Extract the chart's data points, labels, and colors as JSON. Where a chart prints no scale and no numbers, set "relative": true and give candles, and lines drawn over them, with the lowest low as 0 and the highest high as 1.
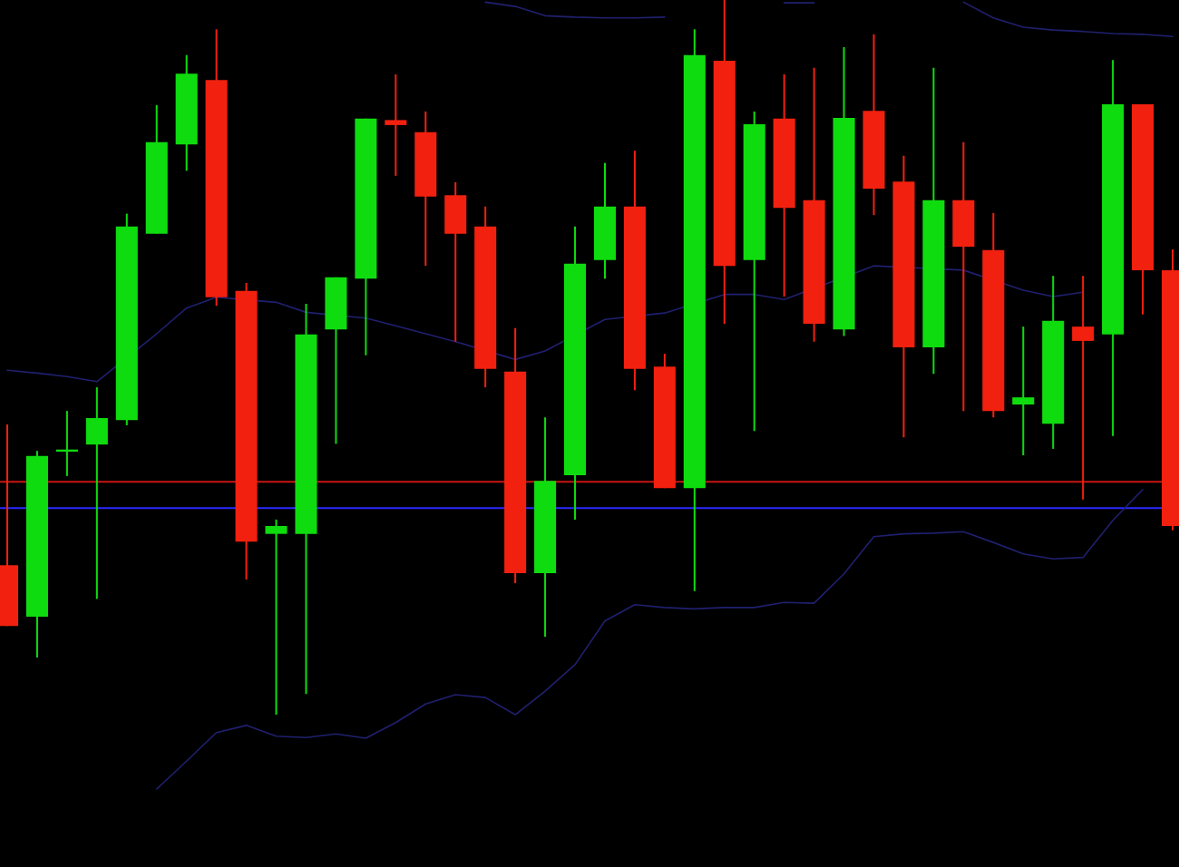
{
  "chart_data": {
    "type": "candlestick",
    "relative": true,
    "categories": [
      null,
      null,
      null,
      null,
      null,
      null,
      null,
      null,
      null,
      null,
      null,
      null,
      null,
      null,
      null,
      null,
      null,
      null,
      null,
      null,
      null,
      null,
      null,
      null,
      null,
      null,
      null,
      null,
      null,
      null,
      null,
      null,
      null,
      null,
      null,
      null,
      null,
      null,
      null,
      null
    ],
    "ohlc": [
      [
        0.209,
        0.406,
        0.124,
        0.124
      ],
      [
        0.137,
        0.369,
        0.08,
        0.362
      ],
      [
        0.368,
        0.425,
        0.334,
        0.371
      ],
      [
        0.378,
        0.458,
        0.162,
        0.415
      ],
      [
        0.412,
        0.701,
        0.405,
        0.683
      ],
      [
        0.673,
        0.853,
        0.673,
        0.801
      ],
      [
        0.798,
        0.923,
        0.761,
        0.897
      ],
      [
        0.888,
        0.959,
        0.572,
        0.584
      ],
      [
        0.593,
        0.604,
        0.189,
        0.242
      ],
      [
        0.253,
        0.273,
        0,
        0.264
      ],
      [
        0.253,
        0.575,
        0.029,
        0.532
      ],
      [
        0.539,
        0.612,
        0.379,
        0.612
      ],
      [
        0.61,
        0.834,
        0.503,
        0.834
      ],
      [
        0.832,
        0.896,
        0.754,
        0.825
      ],
      [
        0.815,
        0.844,
        0.628,
        0.725
      ],
      [
        0.727,
        0.745,
        0.522,
        0.673
      ],
      [
        0.683,
        0.711,
        0.458,
        0.484
      ],
      [
        0.48,
        0.541,
        0.184,
        0.198
      ],
      [
        0.198,
        0.416,
        0.109,
        0.327
      ],
      [
        0.335,
        0.683,
        0.273,
        0.631
      ],
      [
        0.636,
        0.772,
        0.61,
        0.711
      ],
      [
        0.711,
        0.789,
        0.454,
        0.484
      ],
      [
        0.487,
        0.505,
        0.317,
        0.317
      ],
      [
        0.317,
        0.959,
        0.173,
        0.923
      ],
      [
        0.915,
        1,
        0.547,
        0.628
      ],
      [
        0.636,
        0.844,
        0.397,
        0.826
      ],
      [
        0.834,
        0.896,
        0.585,
        0.709
      ],
      [
        0.72,
        0.905,
        0.522,
        0.547
      ],
      [
        0.539,
        0.934,
        0.53,
        0.835
      ],
      [
        0.845,
        0.952,
        0.699,
        0.736
      ],
      [
        0.746,
        0.782,
        0.388,
        0.514
      ],
      [
        0.514,
        0.905,
        0.477,
        0.72
      ],
      [
        0.72,
        0.801,
        0.425,
        0.655
      ],
      [
        0.65,
        0.702,
        0.416,
        0.425
      ],
      [
        0.434,
        0.543,
        0.363,
        0.444
      ],
      [
        0.407,
        0.614,
        0.372,
        0.551
      ],
      [
        0.543,
        0.614,
        0.301,
        0.523
      ],
      [
        0.532,
        0.916,
        0.39,
        0.854
      ],
      [
        0.854,
        0.854,
        0.56,
        0.622
      ],
      [
        0.622,
        0.651,
        0.258,
        0.264
      ]
    ],
    "colors": [
      "#f2200f",
      "#0fdc0f",
      "#0fdc0f",
      "#0fdc0f",
      "#0fdc0f",
      "#0fdc0f",
      "#0fdc0f",
      "#f2200f",
      "#f2200f",
      "#0fdc0f",
      "#0fdc0f",
      "#0fdc0f",
      "#0fdc0f",
      "#f2200f",
      "#f2200f",
      "#f2200f",
      "#f2200f",
      "#f2200f",
      "#0fdc0f",
      "#0fdc0f",
      "#0fdc0f",
      "#f2200f",
      "#f2200f",
      "#0fdc0f",
      "#f2200f",
      "#0fdc0f",
      "#f2200f",
      "#f2200f",
      "#0fdc0f",
      "#f2200f",
      "#f2200f",
      "#0fdc0f",
      "#f2200f",
      "#f2200f",
      "#0fdc0f",
      "#0fdc0f",
      "#f2200f",
      "#0fdc0f",
      "#f2200f",
      "#f2200f"
    ],
    "series": [
      {
        "type": "line",
        "color": "#202070",
        "values": [
          null,
          null,
          null,
          null,
          null,
          null,
          null,
          null,
          null,
          null,
          null,
          null,
          null,
          null,
          null,
          null,
          0.997,
          0.991,
          0.978,
          0.976,
          0.975,
          0.975,
          0.976,
          null,
          null,
          null,
          0.996,
          0.996,
          null,
          null,
          null,
          null,
          0.997,
          0.975,
          0.962,
          0.958,
          0.956,
          0.953,
          0.952,
          0.949
        ]
      },
      {
        "type": "line",
        "color": "#202070",
        "values": [
          0.482,
          0.478,
          0.473,
          0.466,
          null,
          0.533,
          0.569,
          0.584,
          null,
          0.577,
          0.563,
          null,
          0.555,
          0.544,
          0.533,
          0.522,
          null,
          0.497,
          0.509,
          null,
          0.553,
          null,
          0.562,
          null,
          0.588,
          0.588,
          0.581,
          null,
          null,
          0.628,
          null,
          null,
          0.622,
          null,
          0.594,
          0.585,
          0.591,
          null,
          null,
          null
        ]
      },
      {
        "type": "line",
        "color": "#202070",
        "values": [
          null,
          null,
          null,
          null,
          null,
          -0.104,
          -0.065,
          -0.025,
          -0.015,
          -0.03,
          -0.032,
          -0.027,
          -0.033,
          -0.011,
          0.015,
          0.028,
          0.024,
          0,
          0.033,
          0.07,
          0.131,
          0.154,
          0.15,
          0.148,
          0.15,
          0.15,
          0.157,
          0.156,
          0.197,
          0.249,
          0.253,
          0.254,
          0.256,
          0.241,
          0.225,
          0.218,
          0.22,
          0.272,
          0.315,
          null
        ]
      }
    ],
    "ref_lines": [
      {
        "axis": "y",
        "value": 0.326,
        "color": "#c81414"
      },
      {
        "axis": "y",
        "value": 0.289,
        "color": "#2a2aff"
      }
    ],
    "marker": "none",
    "grid": false,
    "legend": false
  }
}
